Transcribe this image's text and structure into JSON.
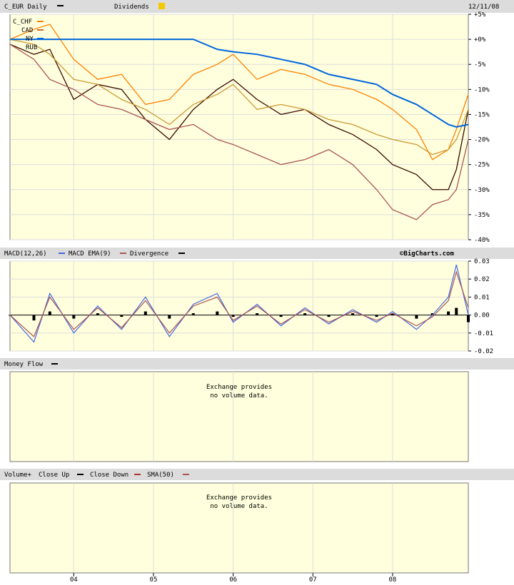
{
  "header": {
    "symbol_label": "C_EUR Daily",
    "dividends_label": "Dividends",
    "date": "12/11/08",
    "dividends_color": "#f5c800"
  },
  "price_panel": {
    "y_ticks": [
      "+5%",
      "+0%",
      "-5%",
      "-10%",
      "-15%",
      "-20%",
      "-25%",
      "-30%",
      "-35%",
      "-40%"
    ],
    "legend": [
      "C_CHF",
      "C_CAD",
      "C_JPY",
      "C_RUB"
    ],
    "legend_visible": [
      "C_CHF",
      "CAD",
      "NY",
      "RUB"
    ]
  },
  "macd_panel": {
    "title_macd": "MACD(12,26)",
    "title_ema": "MACD EMA(9)",
    "title_div": "Divergence",
    "credit": "©BigCharts.com",
    "y_ticks": [
      "0.03",
      "0.02",
      "0.01",
      "0.00",
      "-0.01",
      "-0.02"
    ]
  },
  "money_flow_panel": {
    "title": "Money Flow",
    "message_line1": "Exchange provides",
    "message_line2": "no volume data."
  },
  "volume_panel": {
    "title_volume": "Volume+",
    "title_up": "Close Up",
    "title_down": "Close Down",
    "title_sma": "SMA(50)",
    "message_line1": "Exchange provides",
    "message_line2": "no volume data."
  },
  "x_ticks": [
    "04",
    "05",
    "06",
    "07",
    "08"
  ],
  "colors": {
    "panel_bg": "#ffffdd",
    "header_bg": "#dcdcdc",
    "grid": "#dddddd",
    "C_CHF": "#ff7f00",
    "C_CAD": "#cc9933",
    "C_JPY": "#0066dd",
    "C_RUB": "#aa5555",
    "C_EUR": "#3a0a00",
    "macd": "#4466dd",
    "ema": "#aa5555"
  },
  "chart_data": [
    {
      "type": "line",
      "title": "C_EUR Daily",
      "y_unit": "percent change",
      "ylim": [
        -40,
        5
      ],
      "x_ticks": [
        "04",
        "05",
        "06",
        "07",
        "08"
      ],
      "x": [
        2003.2,
        2003.5,
        2003.7,
        2004.0,
        2004.3,
        2004.6,
        2004.9,
        2005.2,
        2005.5,
        2005.8,
        2006.0,
        2006.3,
        2006.6,
        2006.9,
        2007.2,
        2007.5,
        2007.8,
        2008.0,
        2008.3,
        2008.5,
        2008.7,
        2008.8,
        2008.95
      ],
      "series": [
        {
          "name": "C_EUR",
          "values": [
            -1,
            -3,
            -2,
            -12,
            -9,
            -10,
            -16,
            -20,
            -14,
            -10,
            -8,
            -12,
            -15,
            -14,
            -17,
            -19,
            -22,
            -25,
            -27,
            -30,
            -30,
            -26,
            -14
          ]
        },
        {
          "name": "C_CHF",
          "values": [
            0,
            2,
            3,
            -4,
            -8,
            -7,
            -13,
            -12,
            -7,
            -5,
            -3,
            -8,
            -6,
            -7,
            -9,
            -10,
            -12,
            -14,
            -18,
            -24,
            -22,
            -18,
            -11
          ]
        },
        {
          "name": "C_CAD",
          "values": [
            0,
            -1,
            -3,
            -8,
            -9,
            -12,
            -14,
            -17,
            -13,
            -11,
            -9,
            -14,
            -13,
            -14,
            -16,
            -17,
            -19,
            -20,
            -21,
            -23,
            -22,
            -20,
            -14
          ]
        },
        {
          "name": "C_JPY",
          "values": [
            0,
            0,
            0,
            0,
            0,
            0,
            0,
            0,
            0,
            -2,
            -2.5,
            -3,
            -4,
            -5,
            -7,
            -8,
            -9,
            -11,
            -13,
            -15,
            -17,
            -17.5,
            -17
          ]
        },
        {
          "name": "C_RUB",
          "values": [
            -1,
            -4,
            -8,
            -10,
            -13,
            -14,
            -16,
            -18,
            -17,
            -20,
            -21,
            -23,
            -25,
            -24,
            -22,
            -25,
            -30,
            -34,
            -36,
            -33,
            -32,
            -30,
            -20
          ]
        }
      ],
      "legend_position": "top-left"
    },
    {
      "type": "line",
      "title": "MACD(12,26)",
      "ylim": [
        -0.02,
        0.03
      ],
      "series": [
        {
          "name": "MACD(12,26)",
          "values": [
            0.0,
            -0.015,
            0.012,
            -0.01,
            0.005,
            -0.008,
            0.01,
            -0.012,
            0.006,
            0.012,
            -0.004,
            0.006,
            -0.006,
            0.004,
            -0.005,
            0.003,
            -0.004,
            0.002,
            -0.008,
            0.0,
            0.01,
            0.028,
            0.0
          ]
        },
        {
          "name": "MACD EMA(9)",
          "values": [
            0.0,
            -0.012,
            0.01,
            -0.008,
            0.004,
            -0.007,
            0.008,
            -0.01,
            0.005,
            0.01,
            -0.003,
            0.005,
            -0.005,
            0.003,
            -0.004,
            0.002,
            -0.003,
            0.001,
            -0.006,
            -0.001,
            0.008,
            0.024,
            0.004
          ]
        },
        {
          "name": "Divergence",
          "values": [
            0.0,
            -0.003,
            0.002,
            -0.002,
            0.001,
            -0.001,
            0.002,
            -0.002,
            0.001,
            0.002,
            -0.001,
            0.001,
            -0.001,
            0.001,
            -0.001,
            0.001,
            -0.001,
            0.001,
            -0.002,
            0.001,
            0.002,
            0.004,
            -0.004
          ]
        }
      ]
    }
  ]
}
